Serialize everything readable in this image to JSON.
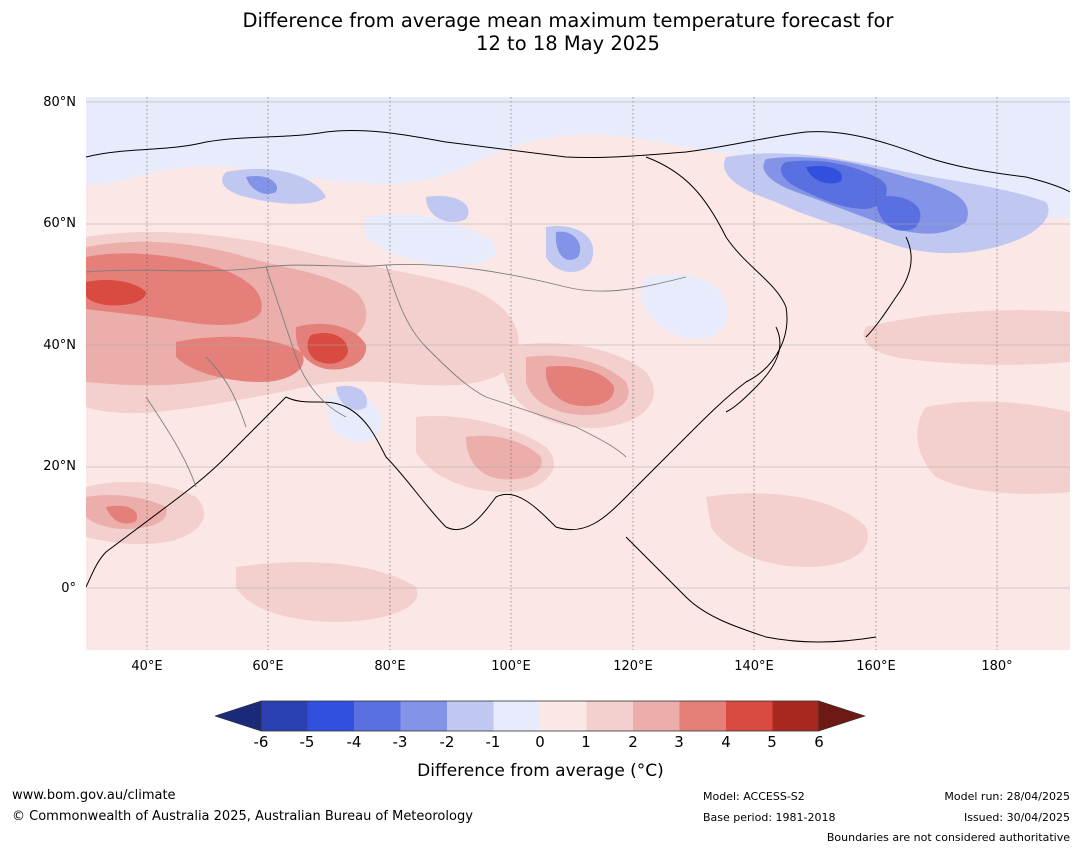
{
  "title_line1": "Difference from average mean maximum temperature forecast for",
  "title_line2": "12 to 18 May 2025",
  "map": {
    "lon_range": [
      30,
      192
    ],
    "lat_range": [
      -10,
      81
    ],
    "lat_labels": [
      "80°N",
      "60°N",
      "40°N",
      "20°N",
      "0°"
    ],
    "lon_labels": [
      "40°E",
      "60°E",
      "80°E",
      "100°E",
      "120°E",
      "140°E",
      "160°E",
      "180°"
    ]
  },
  "colorbar": {
    "label": "Difference from average (°C)",
    "ticks": [
      "-6",
      "-5",
      "-4",
      "-3",
      "-2",
      "-1",
      "0",
      "1",
      "2",
      "3",
      "4",
      "5",
      "6"
    ],
    "colors": [
      "#1b2a78",
      "#2a3fb0",
      "#3250de",
      "#5b70e0",
      "#8394e8",
      "#c0c8f2",
      "#e8ebfb",
      "#fbe8e6",
      "#f3cfcd",
      "#ebaeaa",
      "#e47f79",
      "#d94a40",
      "#a8281f",
      "#6e1a14"
    ]
  },
  "footer": {
    "url": "www.bom.gov.au/climate",
    "copyright": "© Commonwealth of Australia 2025, Australian Bureau of Meteorology",
    "model": "Model: ACCESS-S2",
    "base_period": "Base period: 1981-2018",
    "model_run": "Model run: 28/04/2025",
    "issued": "Issued: 30/04/2025",
    "disclaimer": "Boundaries are not considered authoritative"
  }
}
